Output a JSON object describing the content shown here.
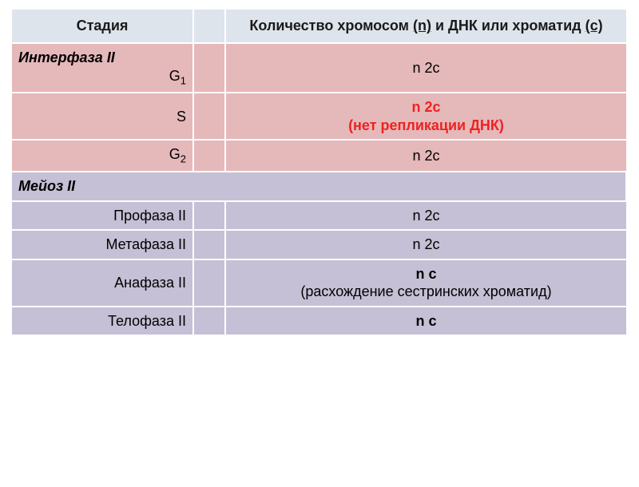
{
  "colors": {
    "header_bg": "#dde4ec",
    "pink_bg": "#e5b8ba",
    "purple_bg": "#c5c0d5",
    "red_text": "#e22",
    "border": "#ffffff",
    "text": "#1a1a1a"
  },
  "header": {
    "stage": "Стадия",
    "value_prefix": "Количество хромосом ",
    "value_n": "(n)",
    "value_mid": " и ДНК или хроматид ",
    "value_c": "(c)"
  },
  "rows": [
    {
      "kind": "interphase_g1",
      "title": "Интерфаза II",
      "sub": "G",
      "sub_idx": "1",
      "value": "n 2c"
    },
    {
      "kind": "s",
      "label": "S",
      "value": "n 2c",
      "note": "(нет репликации ДНК)"
    },
    {
      "kind": "g2",
      "sub": "G",
      "sub_idx": "2",
      "value": "n 2c"
    },
    {
      "kind": "meiosis_header",
      "title": "Мейоз II"
    },
    {
      "kind": "prophase",
      "label": "Профаза II",
      "value": "n 2c"
    },
    {
      "kind": "metaphase",
      "label": "Метафаза II",
      "value": "n 2c"
    },
    {
      "kind": "anaphase",
      "label": "Анафаза II",
      "value": "n c",
      "note": "(расхождение сестринских хроматид)"
    },
    {
      "kind": "telophase",
      "label": "Телофаза II",
      "value": "n c"
    }
  ]
}
